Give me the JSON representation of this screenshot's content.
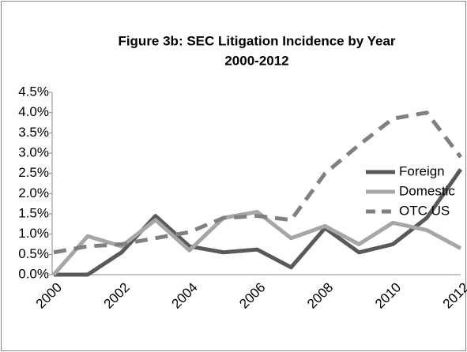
{
  "chart_data": {
    "type": "line",
    "title": "Figure 3b: SEC Litigation Incidence by Year",
    "subtitle": "2000-2012",
    "categories": [
      "2000",
      null,
      "2002",
      null,
      "2004",
      null,
      "2006",
      null,
      "2008",
      null,
      "2010",
      null,
      "2012"
    ],
    "series": [
      {
        "name": "Foreign",
        "color": "#595959",
        "dashed": false,
        "values": [
          0,
          0,
          0.55,
          1.45,
          0.7,
          0.55,
          0.62,
          0.18,
          1.15,
          0.55,
          0.75,
          1.4,
          2.6
        ]
      },
      {
        "name": "Domestic",
        "color": "#a6a6a6",
        "dashed": false,
        "values": [
          0,
          0.95,
          0.7,
          1.35,
          0.6,
          1.4,
          1.55,
          0.9,
          1.2,
          0.75,
          1.28,
          1.1,
          0.65
        ]
      },
      {
        "name": "OTC US",
        "color": "#808080",
        "dashed": true,
        "values": [
          0.55,
          0.7,
          0.75,
          0.9,
          1.05,
          1.4,
          1.45,
          1.35,
          2.5,
          3.2,
          3.85,
          4.0,
          2.9
        ]
      }
    ],
    "ylim": [
      0,
      4.5
    ],
    "yticks": [
      {
        "value": 0,
        "label": "0.0%"
      },
      {
        "value": 0.5,
        "label": "0.5%"
      },
      {
        "value": 1,
        "label": "1.0%"
      },
      {
        "value": 1.5,
        "label": "1.5%"
      },
      {
        "value": 2,
        "label": "2.0%"
      },
      {
        "value": 2.5,
        "label": "2.5%"
      },
      {
        "value": 3,
        "label": "3.0%"
      },
      {
        "value": 3.5,
        "label": "3.5%"
      },
      {
        "value": 4,
        "label": "4.0%"
      },
      {
        "value": 4.5,
        "label": "4.5%"
      }
    ],
    "grid": false,
    "legend": "right"
  }
}
